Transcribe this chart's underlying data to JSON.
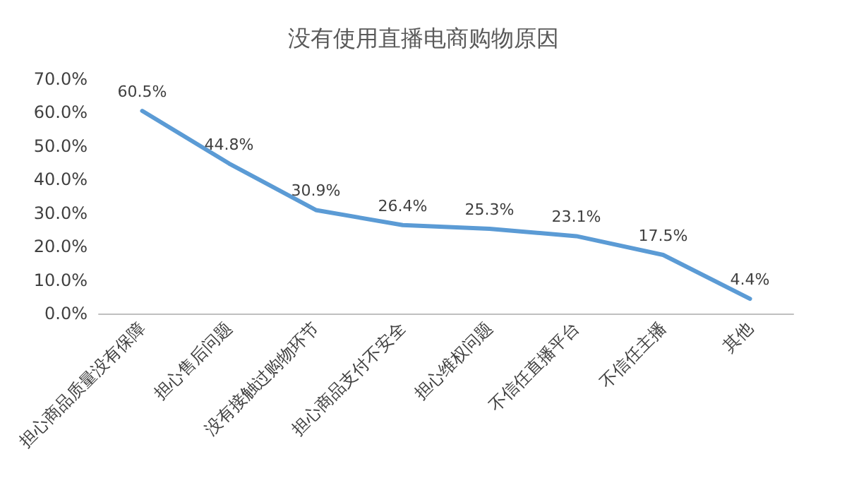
{
  "chart_data": {
    "type": "line",
    "title": "没有使用直播电商购物原因",
    "categories": [
      "担心商品质量没有保障",
      "担心售后问题",
      "没有接触过购物环节",
      "担心商品支付不安全",
      "担心维权问题",
      "不信任直播平台",
      "不信任主播",
      "其他"
    ],
    "series": [
      {
        "color": "#5b9bd5",
        "values": [
          60.5,
          44.8,
          30.9,
          26.4,
          25.3,
          23.1,
          17.5,
          4.4
        ],
        "value_labels": [
          "60.5%",
          "44.8%",
          "30.9%",
          "26.4%",
          "25.3%",
          "23.1%",
          "17.5%",
          "4.4%"
        ]
      }
    ],
    "ylim": [
      0,
      70
    ],
    "yticks": [
      {
        "value": 0,
        "label": "0.0%"
      },
      {
        "value": 10,
        "label": "10.0%"
      },
      {
        "value": 20,
        "label": "20.0%"
      },
      {
        "value": 30,
        "label": "30.0%"
      },
      {
        "value": 40,
        "label": "40.0%"
      },
      {
        "value": 50,
        "label": "50.0%"
      },
      {
        "value": 60,
        "label": "60.0%"
      },
      {
        "value": 70,
        "label": "70.0%"
      }
    ],
    "grid": false,
    "marker": "none",
    "line_style": "solid"
  }
}
